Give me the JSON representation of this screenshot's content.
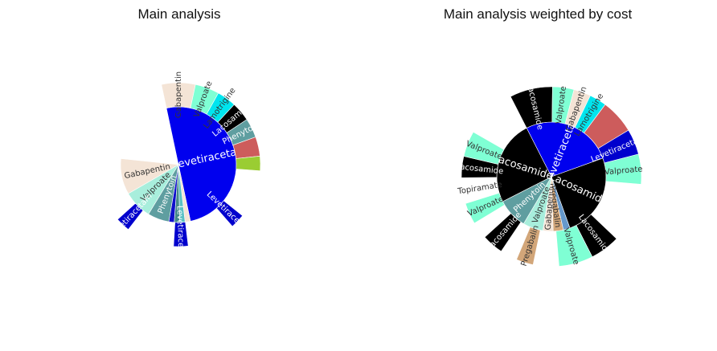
{
  "chart_data": [
    {
      "type": "sunburst",
      "title": "Main analysis",
      "rings": [
        [
          {
            "label": "Levetiracetam",
            "value": 50,
            "color": "#0000ee"
          },
          {
            "label": "",
            "value": 1.5,
            "color": "#f4e4d6"
          },
          {
            "label": "",
            "value": 1.5,
            "color": "#59c0c4"
          },
          {
            "label": "",
            "value": 1.5,
            "color": "#44888a"
          },
          {
            "label": "",
            "value": 1.5,
            "color": "#0f0fcc"
          },
          {
            "label": "Phenytoin",
            "value": 6,
            "color": "#5f9ea0"
          },
          {
            "label": "Valproate",
            "value": 8,
            "color": "#a8eedc"
          },
          {
            "label": "Gabapentin",
            "value": 10,
            "color": "#f4e4d6"
          },
          {
            "label": "",
            "value": 20,
            "color": "#ffffff"
          }
        ],
        [
          {
            "label": "Gabapentin",
            "value": 7,
            "color": "#f4e4d6"
          },
          {
            "label": "Valproate",
            "value": 5,
            "color": "#7fffd4"
          },
          {
            "label": "Lamotrigine",
            "value": 4,
            "color": "#00e5ee"
          },
          {
            "label": "Lacosamide",
            "value": 4,
            "color": "#000000"
          },
          {
            "label": "Phenytoin",
            "value": 4,
            "color": "#5f9ea0"
          },
          {
            "label": "",
            "value": 4,
            "color": "#cd5c5c"
          },
          {
            "label": "",
            "value": 3,
            "color": "#9acd32"
          },
          {
            "label": "",
            "value": 10,
            "color": "#ffffff"
          },
          {
            "label": "Levetiracetam",
            "value": 3,
            "color": "#0000cd"
          },
          {
            "label": "",
            "value": 10,
            "color": "#ffffff"
          },
          {
            "label": "Levetiracetam",
            "value": 3,
            "color": "#0000cd"
          },
          {
            "label": "",
            "value": 10,
            "color": "#ffffff"
          },
          {
            "label": "Levetiracetam",
            "value": 3,
            "color": "#0000cd"
          },
          {
            "label": "",
            "value": 35,
            "color": "#ffffff"
          }
        ]
      ]
    },
    {
      "type": "sunburst",
      "title": "Main analysis weighted by cost",
      "rings": [
        [
          {
            "label": "Levetiracetam",
            "value": 27,
            "color": "#0000ee"
          },
          {
            "label": "Lacosamide",
            "value": 25,
            "color": "#000000"
          },
          {
            "label": "",
            "value": 2,
            "color": "#6699cc"
          },
          {
            "label": "Pregabalin",
            "value": 3,
            "color": "#d2a679"
          },
          {
            "label": "Gabapentin",
            "value": 3,
            "color": "#f4e4d6"
          },
          {
            "label": "Valproate",
            "value": 6,
            "color": "#a8eedc"
          },
          {
            "label": "Phenytoin",
            "value": 9,
            "color": "#5f9ea0"
          },
          {
            "label": "Lacosamide",
            "value": 25,
            "color": "#000000"
          }
        ],
        [
          {
            "label": "Lacosamide",
            "value": 10,
            "color": "#000000"
          },
          {
            "label": "Valproate",
            "value": 5,
            "color": "#7fffd4"
          },
          {
            "label": "Gabapentin",
            "value": 4,
            "color": "#f4e4d6"
          },
          {
            "label": "Lamotrigine",
            "value": 4,
            "color": "#00e5ee"
          },
          {
            "label": "",
            "value": 8,
            "color": "#cd5c5c"
          },
          {
            "label": "Levetiracetam",
            "value": 6,
            "color": "#0000cd"
          },
          {
            "label": "Valproate",
            "value": 7,
            "color": "#7fffd4"
          },
          {
            "label": "",
            "value": 14,
            "color": "#ffffff"
          },
          {
            "label": "Lacosamide",
            "value": 7,
            "color": "#000000"
          },
          {
            "label": "Valproate",
            "value": 8,
            "color": "#7fffd4"
          },
          {
            "label": "",
            "value": 6,
            "color": "#ffffff"
          },
          {
            "label": "Pregabalin",
            "value": 4,
            "color": "#d2a679"
          },
          {
            "label": "",
            "value": 4,
            "color": "#ffffff"
          },
          {
            "label": "Lacosamide",
            "value": 5,
            "color": "#000000"
          },
          {
            "label": "",
            "value": 4,
            "color": "#ffffff"
          },
          {
            "label": "Valproate",
            "value": 5,
            "color": "#7fffd4"
          },
          {
            "label": "Topiramate",
            "value": 6,
            "color": "#ffffff"
          },
          {
            "label": "Lacosamide",
            "value": 5,
            "color": "#000000"
          },
          {
            "label": "Valproate",
            "value": 6,
            "color": "#7fffd4"
          },
          {
            "label": "",
            "value": 12,
            "color": "#ffffff"
          }
        ]
      ]
    }
  ]
}
